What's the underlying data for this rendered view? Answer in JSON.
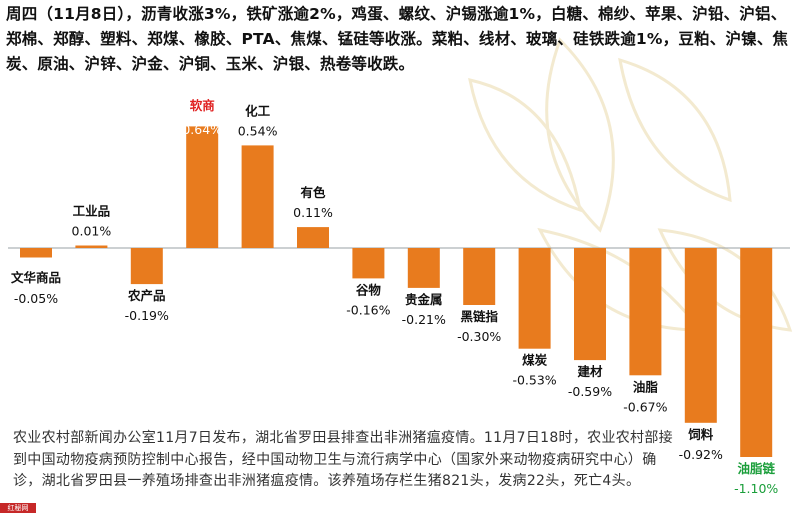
{
  "headline": "周四（11月8日），沥青收涨3%，铁矿涨逾2%，鸡蛋、螺纹、沪锡涨逾1%，白糖、棉纱、苹果、沪铅、沪铝、郑棉、郑醇、塑料、郑煤、橡胶、PTA、焦煤、锰硅等收涨。菜粕、线材、玻璃、硅铁跌逾1%，豆粕、沪镍、焦炭、原油、沪锌、沪金、沪铜、玉米、沪银、热卷等收跌。",
  "news": "农业农村部新闻办公室11月7日发布，湖北省罗田县排查出非洲猪瘟疫情。11月7日18时，农业农村部接到中国动物疫病预防控制中心报告，经中国动物卫生与流行病学中心（国家外来动物疫病研究中心）确诊，湖北省罗田县一养殖场排查出非洲猪瘟疫情。该养殖场存栏生猪821头，发病22头，死亡4头。",
  "corner_tag": "红秘网",
  "colors": {
    "bar": "#e87b1e",
    "highlight": "#e02020",
    "green": "#1a9e3a",
    "text": "#111111",
    "deco": "#f3ead0"
  },
  "chart_data": {
    "type": "bar",
    "title": "",
    "xlabel": "",
    "ylabel": "",
    "categories": [
      "文华商品",
      "工业品",
      "农产品",
      "软商",
      "化工",
      "有色",
      "谷物",
      "贵金属",
      "黑链指",
      "煤炭",
      "建材",
      "油脂",
      "饲料",
      "油脂链"
    ],
    "values": [
      -0.05,
      0.01,
      -0.19,
      0.64,
      0.54,
      0.11,
      -0.16,
      -0.21,
      -0.3,
      -0.53,
      -0.59,
      -0.67,
      -0.92,
      -1.1
    ],
    "value_labels": [
      "-0.05%",
      "0.01%",
      "-0.19%",
      "0.64%",
      "0.54%",
      "0.11%",
      "-0.16%",
      "-0.21%",
      "-0.30%",
      "-0.53%",
      "-0.59%",
      "-0.67%",
      "-0.92%",
      "-1.10%"
    ],
    "label_styles": [
      "normal",
      "normal",
      "normal",
      "highlight",
      "normal",
      "normal",
      "normal",
      "normal",
      "normal",
      "normal",
      "normal",
      "normal",
      "normal",
      "green"
    ],
    "grid": false,
    "legend": "none"
  }
}
